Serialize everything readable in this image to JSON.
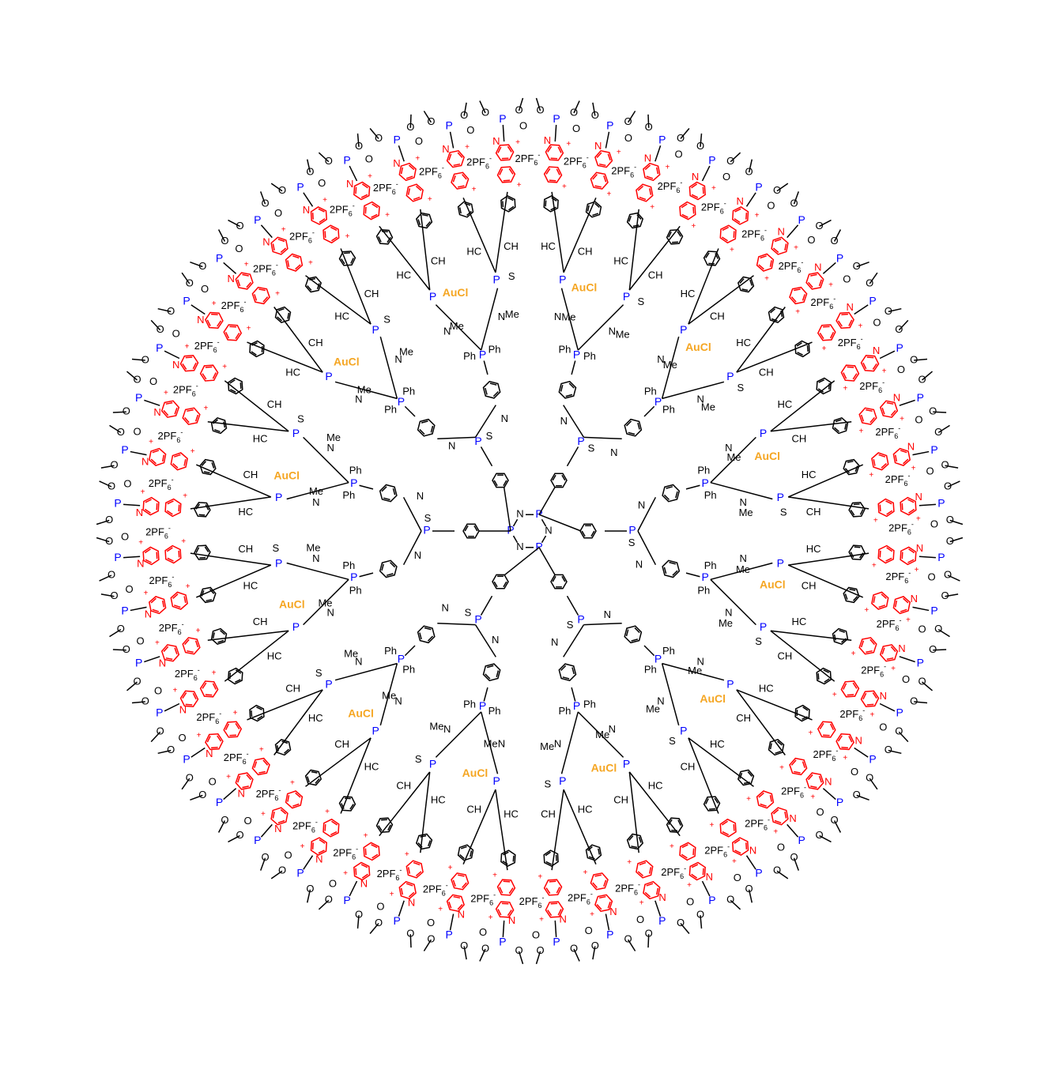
{
  "colors": {
    "bond": "#000000",
    "phosphorus": "#0000ff",
    "gold": "#f5a623",
    "viologen": "#ff0000",
    "background": "#ffffff"
  },
  "core": {
    "atoms": [
      "P",
      "N",
      "P",
      "N",
      "P",
      "N"
    ],
    "core_P_label": "P",
    "core_N_label": "N"
  },
  "labels": {
    "phosphorus": "P",
    "sulfur": "S",
    "oxygen": "O",
    "nitrogen": "N",
    "methyl": "Me",
    "phenyl": "Ph",
    "imine_ch": "HC",
    "imine_ch_alt": "CH",
    "imine_h": "H",
    "gold_complex": "AuCl",
    "counterion": "2PF",
    "counterion_sub": "6",
    "counterion_sup": "-",
    "cation": "+",
    "phosphonate_p": "P"
  },
  "structure": {
    "generations": 3,
    "core_branches": 6,
    "terminal_groups": 48
  }
}
